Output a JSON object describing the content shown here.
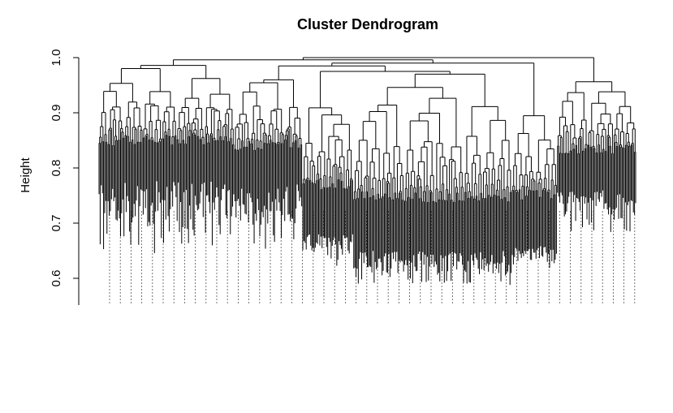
{
  "chart_data": {
    "type": "dendrogram",
    "title": "Cluster Dendrogram",
    "ylabel": "Height",
    "xlabel": "",
    "ylim": [
      0.55,
      1.0
    ],
    "yticks": [
      0.6,
      0.7,
      0.8,
      0.9,
      1.0
    ],
    "ytick_labels": [
      "0.6",
      "0.7",
      "0.8",
      "0.9",
      "1.0"
    ],
    "grid": false,
    "leaf_label_style": "dashed guides, no text",
    "clusters": [
      {
        "leaves": 120,
        "top_height": 0.995,
        "min_leaf_height": 0.63,
        "base_height": 0.78
      },
      {
        "leaves": 60,
        "top_height": 0.99,
        "min_leaf_height": 0.65,
        "base_height": 0.77
      },
      {
        "leaves": 45,
        "top_height": 0.97,
        "min_leaf_height": 0.61,
        "base_height": 0.68
      },
      {
        "leaves": 140,
        "top_height": 0.97,
        "min_leaf_height": 0.58,
        "base_height": 0.65
      },
      {
        "leaves": 40,
        "top_height": 0.96,
        "min_leaf_height": 0.61,
        "base_height": 0.66
      },
      {
        "leaves": 70,
        "top_height": 0.99,
        "min_leaf_height": 0.67,
        "base_height": 0.76
      }
    ],
    "merge_height": 1.0,
    "line_color": "#000000"
  }
}
